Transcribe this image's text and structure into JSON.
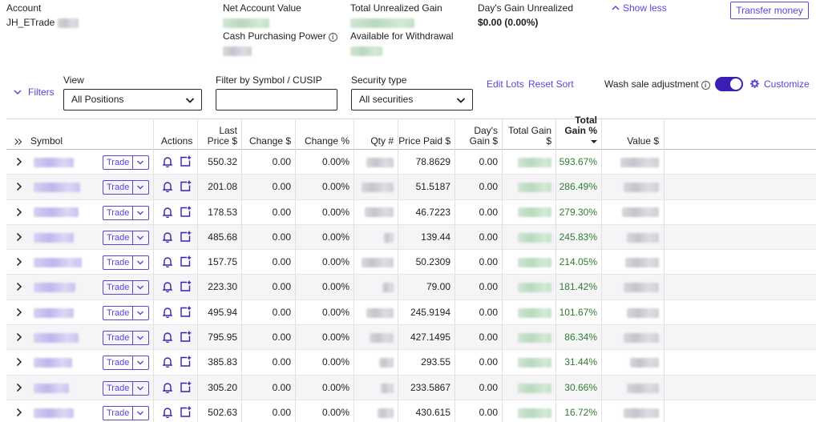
{
  "summary": {
    "account_label": "Account",
    "account_name": "JH_ETrade",
    "net_value_label": "Net Account Value",
    "unrealized_label": "Total Unrealized Gain",
    "days_gain_label": "Day's Gain Unrealized",
    "days_gain_value": "$0.00 (0.00%)",
    "cash_label": "Cash Purchasing Power",
    "withdraw_label": "Available for Withdrawal",
    "show_less": "Show less",
    "transfer": "Transfer money"
  },
  "filters": {
    "toggle_label": "Filters",
    "view_label": "View",
    "view_value": "All Positions",
    "symbol_label": "Filter by Symbol / CUSIP",
    "symbol_value": "",
    "security_label": "Security type",
    "security_value": "All securities",
    "edit_lots": "Edit Lots",
    "reset_sort": "Reset Sort",
    "wash_sale": "Wash sale adjustment",
    "wash_sale_on": true,
    "customize": "Customize"
  },
  "table": {
    "headers": {
      "symbol": "Symbol",
      "actions": "Actions",
      "last_price_1": "Last",
      "last_price_2": "Price $",
      "change": "Change $",
      "change_pct": "Change %",
      "qty": "Qty #",
      "price_paid": "Price Paid $",
      "days_gain_1": "Day's",
      "days_gain_2": "Gain $",
      "total_gain": "Total Gain $",
      "total_gain_pct_1": "Total",
      "total_gain_pct_2": "Gain %",
      "value": "Value $"
    },
    "trade_label": "Trade",
    "rows": [
      {
        "last": "550.32",
        "change": "0.00",
        "change_pct": "0.00%",
        "paid": "78.8629",
        "days_gain": "0.00",
        "gain_pct": "593.67%"
      },
      {
        "last": "201.08",
        "change": "0.00",
        "change_pct": "0.00%",
        "paid": "51.5187",
        "days_gain": "0.00",
        "gain_pct": "286.49%"
      },
      {
        "last": "178.53",
        "change": "0.00",
        "change_pct": "0.00%",
        "paid": "46.7223",
        "days_gain": "0.00",
        "gain_pct": "279.30%"
      },
      {
        "last": "485.68",
        "change": "0.00",
        "change_pct": "0.00%",
        "paid": "139.44",
        "days_gain": "0.00",
        "gain_pct": "245.83%"
      },
      {
        "last": "157.75",
        "change": "0.00",
        "change_pct": "0.00%",
        "paid": "50.2309",
        "days_gain": "0.00",
        "gain_pct": "214.05%"
      },
      {
        "last": "223.30",
        "change": "0.00",
        "change_pct": "0.00%",
        "paid": "79.00",
        "days_gain": "0.00",
        "gain_pct": "181.42%"
      },
      {
        "last": "495.94",
        "change": "0.00",
        "change_pct": "0.00%",
        "paid": "245.9194",
        "days_gain": "0.00",
        "gain_pct": "101.67%"
      },
      {
        "last": "795.95",
        "change": "0.00",
        "change_pct": "0.00%",
        "paid": "427.1495",
        "days_gain": "0.00",
        "gain_pct": "86.34%"
      },
      {
        "last": "385.83",
        "change": "0.00",
        "change_pct": "0.00%",
        "paid": "293.55",
        "days_gain": "0.00",
        "gain_pct": "31.44%"
      },
      {
        "last": "305.20",
        "change": "0.00",
        "change_pct": "0.00%",
        "paid": "233.5867",
        "days_gain": "0.00",
        "gain_pct": "30.66%"
      },
      {
        "last": "502.63",
        "change": "0.00",
        "change_pct": "0.00%",
        "paid": "430.615",
        "days_gain": "0.00",
        "gain_pct": "16.72%"
      }
    ]
  },
  "colors": {
    "accent": "#5b44d6",
    "toggle": "#3b1fb5",
    "gain": "#2e7d32"
  }
}
